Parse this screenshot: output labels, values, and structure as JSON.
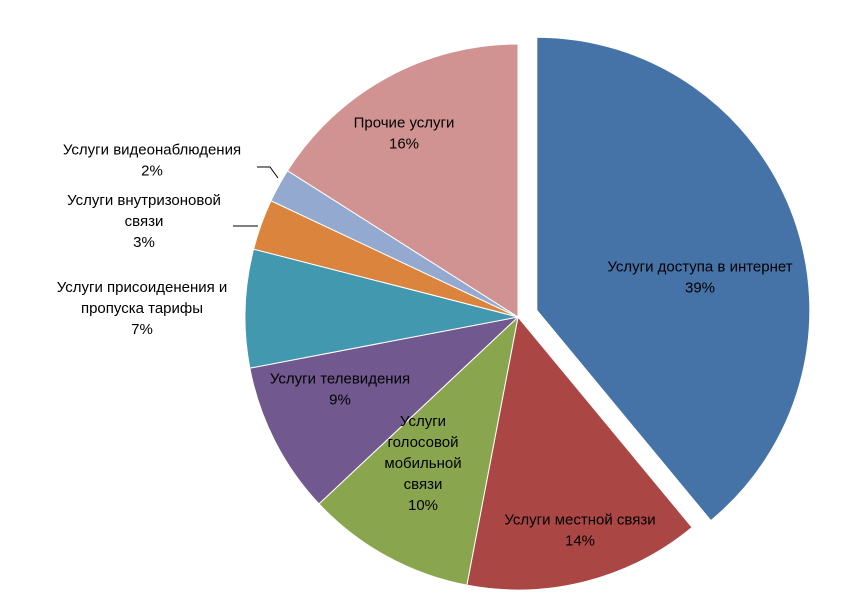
{
  "chart_data": {
    "type": "pie",
    "title": "",
    "slices": [
      {
        "label": [
          "Услуги доступа в интернет"
        ],
        "percent_label": "39%",
        "value": 39,
        "color": "#4572A7",
        "exploded": true
      },
      {
        "label": [
          "Услуги местной связи"
        ],
        "percent_label": "14%",
        "value": 14,
        "color": "#AA4643",
        "exploded": false
      },
      {
        "label": [
          "Услуги",
          "голосовой",
          "мобильной",
          "связи"
        ],
        "percent_label": "10%",
        "value": 10,
        "color": "#89A54E",
        "exploded": false
      },
      {
        "label": [
          "Услуги телевидения"
        ],
        "percent_label": "9%",
        "value": 9,
        "color": "#71588F",
        "exploded": false
      },
      {
        "label": [
          "Услуги присоиденения и",
          "пропуска тарифы"
        ],
        "percent_label": "7%",
        "value": 7,
        "color": "#4198AF",
        "exploded": false
      },
      {
        "label": [
          "Услуги внутризоновой",
          "связи"
        ],
        "percent_label": "3%",
        "value": 3,
        "color": "#DB843D",
        "exploded": false
      },
      {
        "label": [
          "Услуги видеонаблюдения"
        ],
        "percent_label": "2%",
        "value": 2,
        "color": "#93A9CF",
        "exploded": false
      },
      {
        "label": [
          "Прочие услуги"
        ],
        "percent_label": "16%",
        "value": 16,
        "color": "#D19392",
        "exploded": false
      }
    ]
  }
}
